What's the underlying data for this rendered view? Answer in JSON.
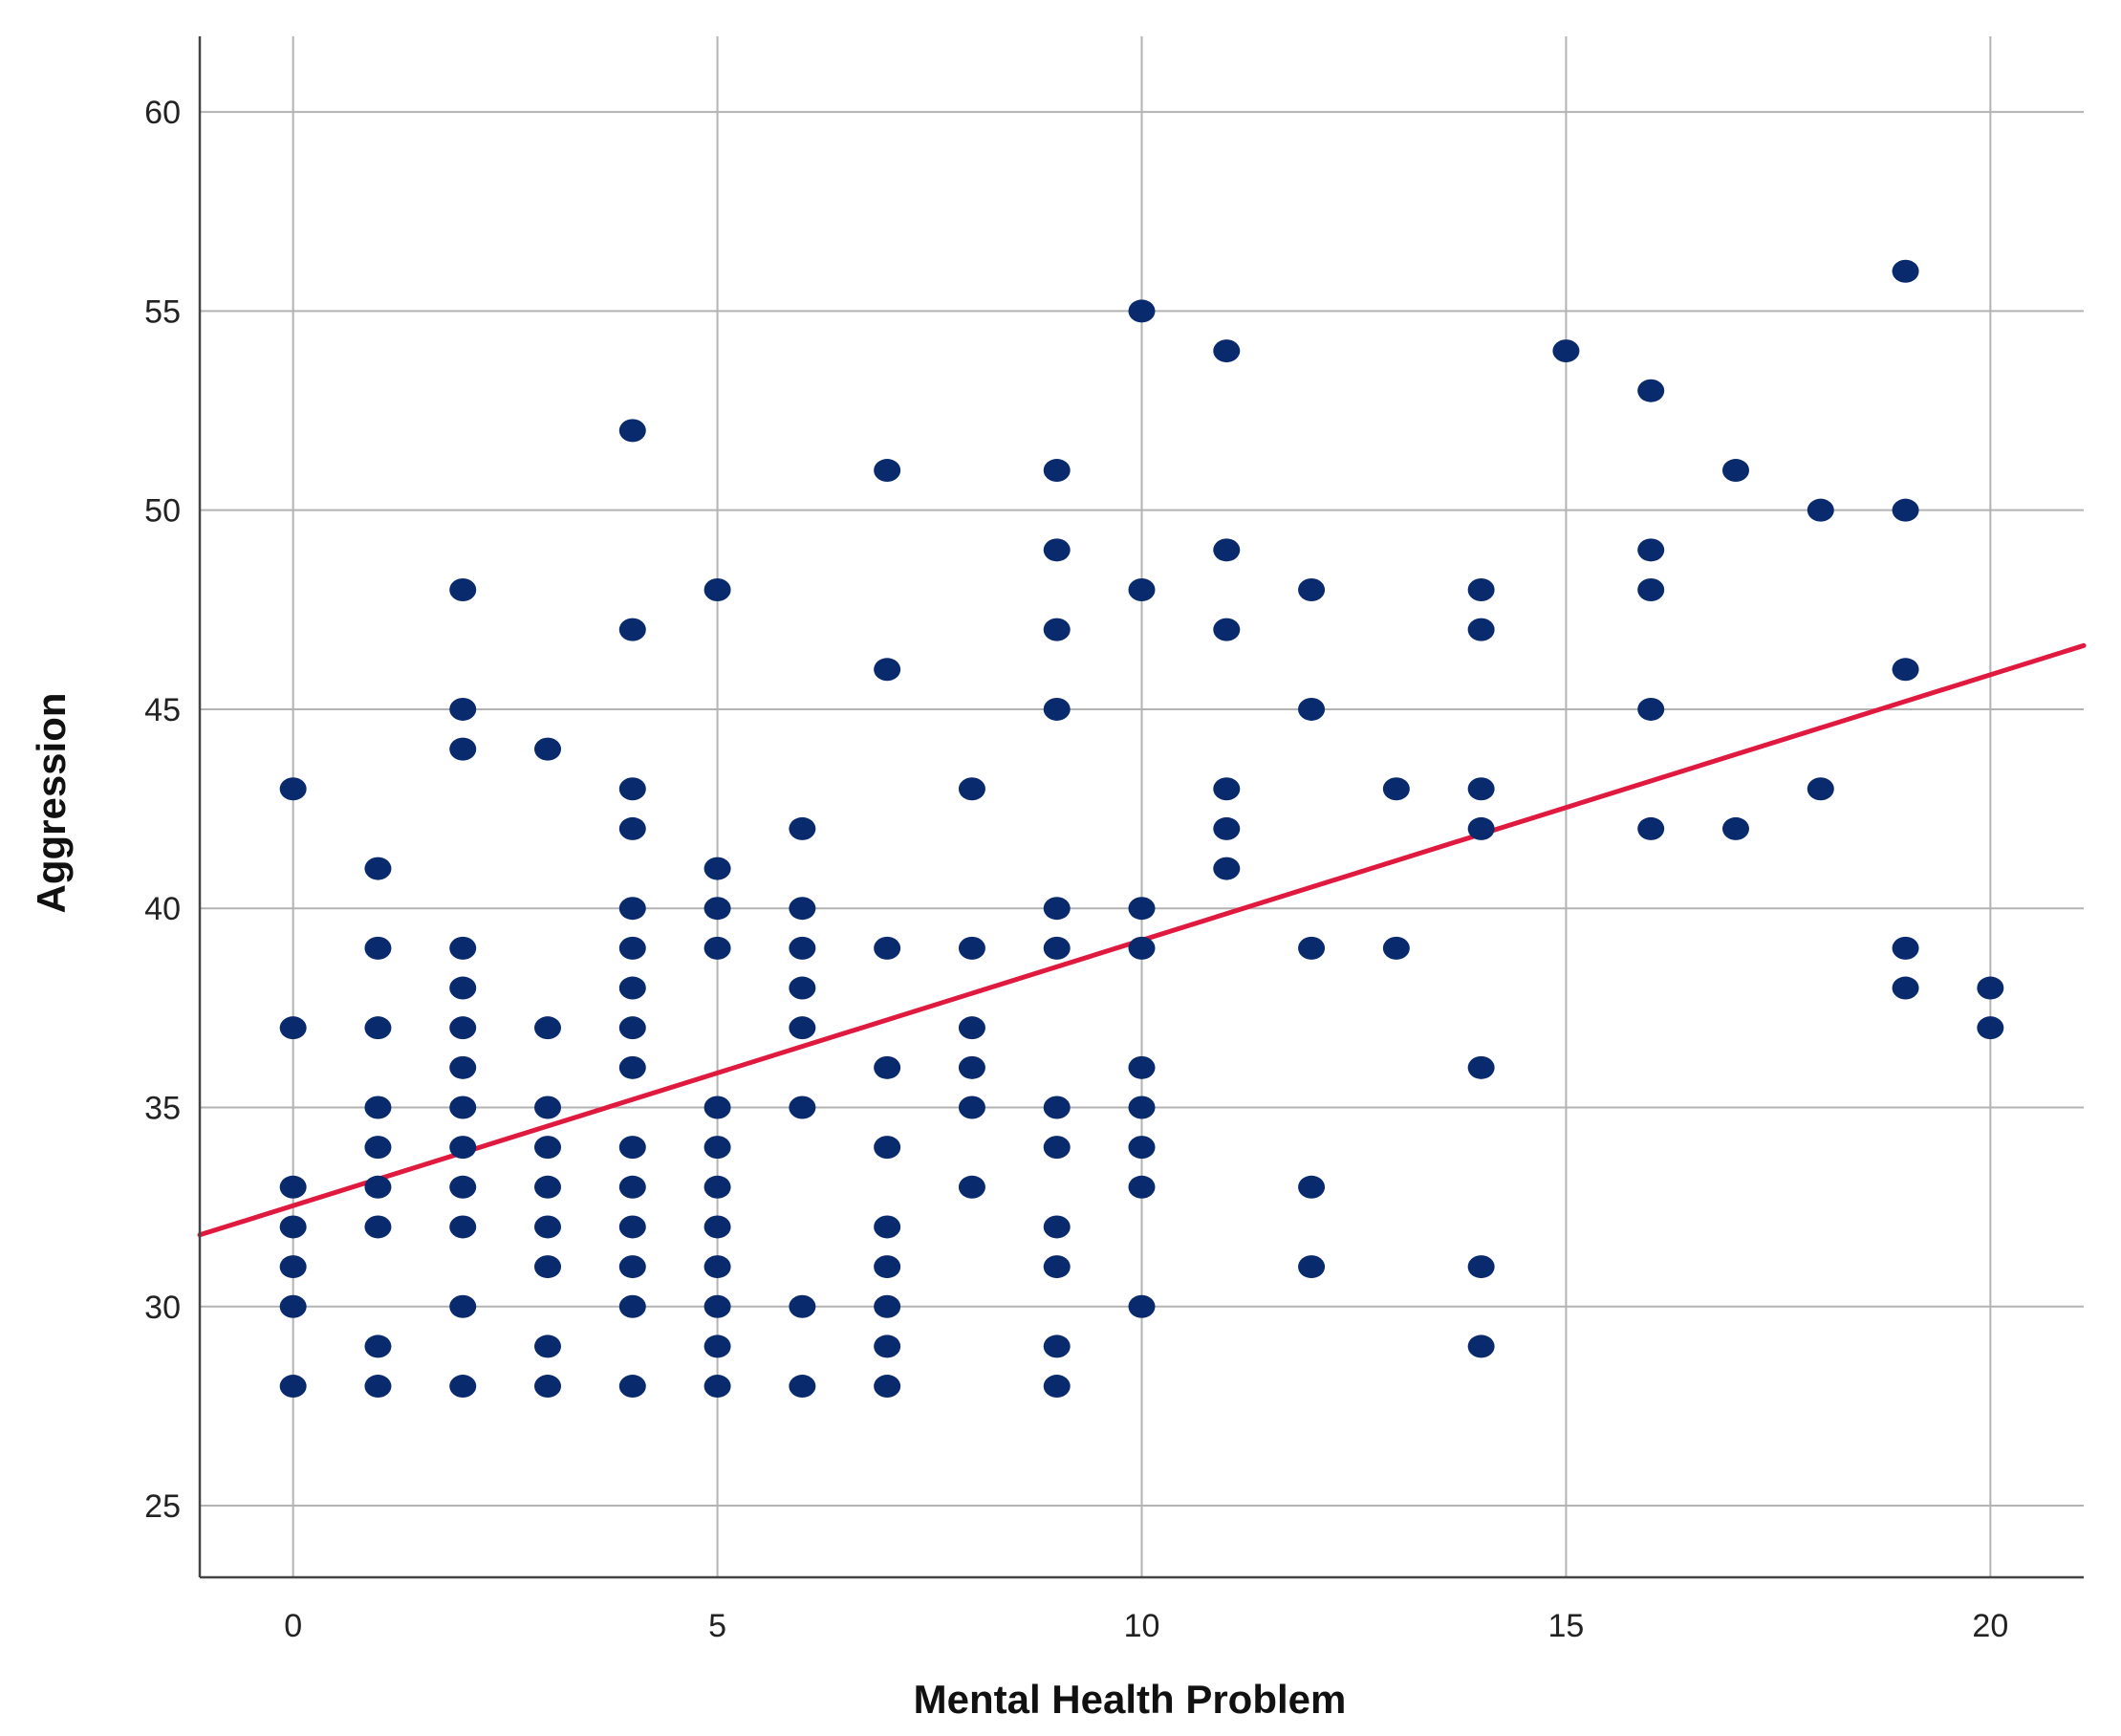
{
  "chart_data": {
    "type": "scatter",
    "title": "",
    "xlabel": "Mental Health Problem",
    "ylabel": "Aggression",
    "xlim": [
      -1.1,
      21.1
    ],
    "ylim": [
      23.2,
      61.9
    ],
    "xticks": [
      0,
      5,
      10,
      15,
      20
    ],
    "yticks": [
      25,
      30,
      35,
      40,
      45,
      50,
      55,
      60
    ],
    "grid": true,
    "legend": "none",
    "colors": {
      "points": "#0a2a6e",
      "fit_line": "#e0193f",
      "grid": "#b3b3b3",
      "axis": "#444444"
    },
    "series": [
      {
        "points": [
          [
            0,
            43
          ],
          [
            0,
            37
          ],
          [
            0,
            33
          ],
          [
            0,
            32
          ],
          [
            0,
            31
          ],
          [
            0,
            30
          ],
          [
            0,
            28
          ],
          [
            1,
            41
          ],
          [
            1,
            39
          ],
          [
            1,
            37
          ],
          [
            1,
            35
          ],
          [
            1,
            34
          ],
          [
            1,
            33
          ],
          [
            1,
            32
          ],
          [
            1,
            29
          ],
          [
            1,
            28
          ],
          [
            2,
            48
          ],
          [
            2,
            45
          ],
          [
            2,
            44
          ],
          [
            2,
            39
          ],
          [
            2,
            38
          ],
          [
            2,
            37
          ],
          [
            2,
            36
          ],
          [
            2,
            35
          ],
          [
            2,
            34
          ],
          [
            2,
            33
          ],
          [
            2,
            32
          ],
          [
            2,
            30
          ],
          [
            2,
            28
          ],
          [
            3,
            44
          ],
          [
            3,
            37
          ],
          [
            3,
            35
          ],
          [
            3,
            34
          ],
          [
            3,
            33
          ],
          [
            3,
            32
          ],
          [
            3,
            31
          ],
          [
            3,
            29
          ],
          [
            3,
            28
          ],
          [
            4,
            52
          ],
          [
            4,
            47
          ],
          [
            4,
            43
          ],
          [
            4,
            42
          ],
          [
            4,
            40
          ],
          [
            4,
            39
          ],
          [
            4,
            38
          ],
          [
            4,
            37
          ],
          [
            4,
            36
          ],
          [
            4,
            34
          ],
          [
            4,
            33
          ],
          [
            4,
            32
          ],
          [
            4,
            31
          ],
          [
            4,
            30
          ],
          [
            4,
            28
          ],
          [
            5,
            48
          ],
          [
            5,
            41
          ],
          [
            5,
            40
          ],
          [
            5,
            39
          ],
          [
            5,
            35
          ],
          [
            5,
            34
          ],
          [
            5,
            33
          ],
          [
            5,
            32
          ],
          [
            5,
            31
          ],
          [
            5,
            30
          ],
          [
            5,
            29
          ],
          [
            5,
            28
          ],
          [
            6,
            42
          ],
          [
            6,
            40
          ],
          [
            6,
            39
          ],
          [
            6,
            38
          ],
          [
            6,
            37
          ],
          [
            6,
            35
          ],
          [
            6,
            30
          ],
          [
            6,
            28
          ],
          [
            7,
            51
          ],
          [
            7,
            46
          ],
          [
            7,
            39
          ],
          [
            7,
            36
          ],
          [
            7,
            34
          ],
          [
            7,
            32
          ],
          [
            7,
            31
          ],
          [
            7,
            30
          ],
          [
            7,
            29
          ],
          [
            7,
            28
          ],
          [
            8,
            43
          ],
          [
            8,
            39
          ],
          [
            8,
            37
          ],
          [
            8,
            36
          ],
          [
            8,
            35
          ],
          [
            8,
            33
          ],
          [
            9,
            51
          ],
          [
            9,
            49
          ],
          [
            9,
            47
          ],
          [
            9,
            45
          ],
          [
            9,
            40
          ],
          [
            9,
            39
          ],
          [
            9,
            35
          ],
          [
            9,
            34
          ],
          [
            9,
            32
          ],
          [
            9,
            31
          ],
          [
            9,
            29
          ],
          [
            9,
            28
          ],
          [
            10,
            55
          ],
          [
            10,
            48
          ],
          [
            10,
            40
          ],
          [
            10,
            39
          ],
          [
            10,
            36
          ],
          [
            10,
            35
          ],
          [
            10,
            34
          ],
          [
            10,
            33
          ],
          [
            10,
            30
          ],
          [
            11,
            54
          ],
          [
            11,
            49
          ],
          [
            11,
            47
          ],
          [
            11,
            43
          ],
          [
            11,
            42
          ],
          [
            11,
            41
          ],
          [
            12,
            48
          ],
          [
            12,
            45
          ],
          [
            12,
            39
          ],
          [
            12,
            33
          ],
          [
            12,
            31
          ],
          [
            13,
            43
          ],
          [
            13,
            39
          ],
          [
            14,
            48
          ],
          [
            14,
            47
          ],
          [
            14,
            43
          ],
          [
            14,
            42
          ],
          [
            14,
            36
          ],
          [
            14,
            31
          ],
          [
            14,
            29
          ],
          [
            15,
            54
          ],
          [
            16,
            53
          ],
          [
            16,
            49
          ],
          [
            16,
            48
          ],
          [
            16,
            45
          ],
          [
            16,
            42
          ],
          [
            17,
            51
          ],
          [
            17,
            42
          ],
          [
            18,
            50
          ],
          [
            18,
            43
          ],
          [
            19,
            56
          ],
          [
            19,
            50
          ],
          [
            19,
            46
          ],
          [
            19,
            39
          ],
          [
            19,
            38
          ],
          [
            20,
            38
          ],
          [
            20,
            37
          ]
        ]
      }
    ],
    "fit_line": {
      "x": [
        -1.1,
        21.1
      ],
      "y": [
        31.8,
        46.6
      ]
    }
  }
}
